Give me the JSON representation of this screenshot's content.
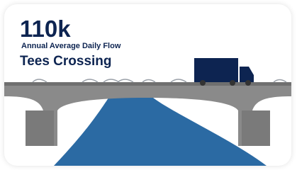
{
  "headline": {
    "value": "110k",
    "caption": "Annual Average Daily Flow",
    "location": "Tees Crossing"
  }
}
